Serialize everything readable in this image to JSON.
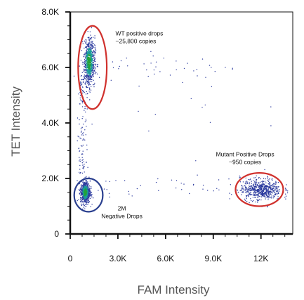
{
  "chart_data": {
    "type": "scatter",
    "xlabel": "FAM Intensity",
    "ylabel": "TET Intensity",
    "xlim": [
      0,
      14000
    ],
    "ylim": [
      0,
      8000
    ],
    "x_ticks": [
      {
        "value": 0,
        "label": "0"
      },
      {
        "value": 3000,
        "label": "3.0K"
      },
      {
        "value": 6000,
        "label": "6.0K"
      },
      {
        "value": 9000,
        "label": "9.0K"
      },
      {
        "value": 12000,
        "label": "12K"
      }
    ],
    "y_ticks": [
      {
        "value": 0,
        "label": "0"
      },
      {
        "value": 2000,
        "label": "2.0K"
      },
      {
        "value": 4000,
        "label": "4.0K"
      },
      {
        "value": 6000,
        "label": "6.0K"
      },
      {
        "value": 8000,
        "label": "8.0K"
      }
    ],
    "clusters": [
      {
        "id": "wt",
        "center": [
          1200,
          6200
        ],
        "spread": [
          180,
          420
        ],
        "ring_color": "#d0312d",
        "ring_center": [
          1400,
          6000
        ],
        "ring_radius": [
          900,
          1500
        ]
      },
      {
        "id": "negative",
        "center": [
          950,
          1500
        ],
        "spread": [
          150,
          200
        ],
        "ring_color": "#2a3f8f",
        "ring_center": [
          1150,
          1400
        ],
        "ring_radius": [
          900,
          600
        ]
      },
      {
        "id": "mutant",
        "center": [
          12000,
          1600
        ],
        "spread": [
          650,
          200
        ],
        "ring_color": "#d0312d",
        "ring_center": [
          11900,
          1600
        ],
        "ring_radius": [
          1500,
          600
        ]
      }
    ],
    "annotations": [
      {
        "lines": [
          "WT positive drops",
          "~25,800 copies"
        ],
        "x": 2850,
        "y": 7150,
        "anchor": "start"
      },
      {
        "lines": [
          "Mutant Positive Drops",
          "~950 copies"
        ],
        "x": 11000,
        "y": 2800,
        "anchor": "middle"
      },
      {
        "lines": [
          "2M",
          "Negative Drops"
        ],
        "x": 3250,
        "y": 850,
        "anchor": "middle"
      }
    ],
    "colors": {
      "points": "#2b3a9e",
      "density_mid": "#1a9b9b",
      "density_high": "#22a33a"
    },
    "grid": false
  }
}
